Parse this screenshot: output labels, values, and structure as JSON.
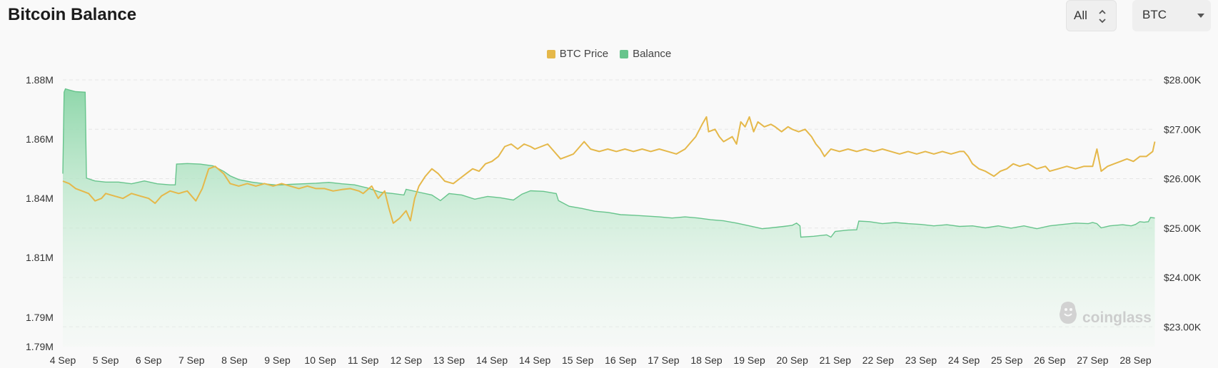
{
  "page": {
    "title": "Bitcoin Balance",
    "range_select": {
      "value": "All"
    },
    "coin_select": {
      "value": "BTC"
    },
    "watermark": "coinglass"
  },
  "colors": {
    "price": "#e5b84a",
    "balance_line": "#67c48c",
    "balance_fill_top": "#86d4a4",
    "grid": "#e6e6e6"
  },
  "icons": [
    "up-down-chevron-icon",
    "caret-down-icon",
    "coinglass-logo-icon"
  ],
  "chart_data": {
    "type": "line",
    "title": "Bitcoin Balance",
    "x": [
      "4 Sep",
      "5 Sep",
      "6 Sep",
      "7 Sep",
      "8 Sep",
      "9 Sep",
      "10 Sep",
      "11 Sep",
      "12 Sep",
      "13 Sep",
      "14 Sep",
      "14 Sep",
      "15 Sep",
      "16 Sep",
      "17 Sep",
      "18 Sep",
      "19 Sep",
      "20 Sep",
      "21 Sep",
      "22 Sep",
      "23 Sep",
      "24 Sep",
      "25 Sep",
      "26 Sep",
      "27 Sep",
      "28 Sep"
    ],
    "y_left": {
      "ticks": [
        "1.88M",
        "1.86M",
        "1.84M",
        "1.81M",
        "1.79M",
        "1.79M"
      ],
      "min": 1.786,
      "max": 1.881
    },
    "y_right": {
      "ticks": [
        "$28.00K",
        "$27.00K",
        "$26.00K",
        "$25.00K",
        "$24.00K",
        "$23.00K"
      ],
      "min": 22.6,
      "max": 28.0
    },
    "grid": true,
    "legend_position": "top-center",
    "series": [
      {
        "name": "BTC Price",
        "axis": "right",
        "color": "#e5b84a",
        "points": [
          [
            0,
            25.95
          ],
          [
            0.15,
            25.9
          ],
          [
            0.3,
            25.8
          ],
          [
            0.45,
            25.75
          ],
          [
            0.6,
            25.7
          ],
          [
            0.75,
            25.55
          ],
          [
            0.9,
            25.6
          ],
          [
            1.0,
            25.7
          ],
          [
            1.2,
            25.65
          ],
          [
            1.4,
            25.6
          ],
          [
            1.6,
            25.7
          ],
          [
            1.8,
            25.65
          ],
          [
            2.0,
            25.6
          ],
          [
            2.15,
            25.5
          ],
          [
            2.3,
            25.65
          ],
          [
            2.5,
            25.75
          ],
          [
            2.7,
            25.7
          ],
          [
            2.9,
            25.75
          ],
          [
            3.0,
            25.65
          ],
          [
            3.1,
            25.55
          ],
          [
            3.25,
            25.8
          ],
          [
            3.4,
            26.2
          ],
          [
            3.55,
            26.25
          ],
          [
            3.75,
            26.1
          ],
          [
            3.9,
            25.9
          ],
          [
            4.1,
            25.85
          ],
          [
            4.3,
            25.9
          ],
          [
            4.5,
            25.85
          ],
          [
            4.7,
            25.9
          ],
          [
            4.9,
            25.85
          ],
          [
            5.1,
            25.9
          ],
          [
            5.3,
            25.85
          ],
          [
            5.5,
            25.8
          ],
          [
            5.7,
            25.85
          ],
          [
            5.9,
            25.8
          ],
          [
            6.1,
            25.8
          ],
          [
            6.3,
            25.75
          ],
          [
            6.5,
            25.78
          ],
          [
            6.7,
            25.8
          ],
          [
            6.9,
            25.75
          ],
          [
            7.0,
            25.7
          ],
          [
            7.2,
            25.85
          ],
          [
            7.35,
            25.6
          ],
          [
            7.5,
            25.75
          ],
          [
            7.6,
            25.4
          ],
          [
            7.7,
            25.1
          ],
          [
            7.85,
            25.2
          ],
          [
            8.0,
            25.35
          ],
          [
            8.1,
            25.15
          ],
          [
            8.2,
            25.6
          ],
          [
            8.3,
            25.85
          ],
          [
            8.45,
            26.05
          ],
          [
            8.6,
            26.2
          ],
          [
            8.75,
            26.1
          ],
          [
            8.9,
            25.95
          ],
          [
            9.1,
            25.9
          ],
          [
            9.25,
            26.0
          ],
          [
            9.4,
            26.1
          ],
          [
            9.55,
            26.2
          ],
          [
            9.7,
            26.15
          ],
          [
            9.85,
            26.3
          ],
          [
            10.0,
            26.35
          ],
          [
            10.15,
            26.45
          ],
          [
            10.3,
            26.65
          ],
          [
            10.45,
            26.7
          ],
          [
            10.6,
            26.6
          ],
          [
            10.75,
            26.7
          ],
          [
            10.9,
            26.65
          ],
          [
            11.0,
            26.6
          ],
          [
            11.15,
            26.65
          ],
          [
            11.3,
            26.7
          ],
          [
            11.45,
            26.55
          ],
          [
            11.6,
            26.4
          ],
          [
            11.75,
            26.45
          ],
          [
            11.9,
            26.5
          ],
          [
            12.0,
            26.6
          ],
          [
            12.15,
            26.75
          ],
          [
            12.3,
            26.6
          ],
          [
            12.5,
            26.55
          ],
          [
            12.7,
            26.6
          ],
          [
            12.9,
            26.55
          ],
          [
            13.1,
            26.6
          ],
          [
            13.3,
            26.55
          ],
          [
            13.5,
            26.6
          ],
          [
            13.7,
            26.55
          ],
          [
            13.9,
            26.6
          ],
          [
            14.1,
            26.55
          ],
          [
            14.3,
            26.5
          ],
          [
            14.5,
            26.6
          ],
          [
            14.6,
            26.7
          ],
          [
            14.75,
            26.85
          ],
          [
            14.9,
            27.1
          ],
          [
            15.0,
            27.25
          ],
          [
            15.05,
            26.95
          ],
          [
            15.2,
            27.0
          ],
          [
            15.3,
            26.85
          ],
          [
            15.4,
            26.75
          ],
          [
            15.5,
            26.8
          ],
          [
            15.6,
            26.85
          ],
          [
            15.7,
            26.7
          ],
          [
            15.8,
            27.15
          ],
          [
            15.9,
            27.05
          ],
          [
            16.0,
            27.25
          ],
          [
            16.1,
            26.95
          ],
          [
            16.2,
            27.15
          ],
          [
            16.35,
            27.05
          ],
          [
            16.5,
            27.1
          ],
          [
            16.6,
            27.05
          ],
          [
            16.75,
            26.95
          ],
          [
            16.9,
            27.05
          ],
          [
            17.0,
            27.0
          ],
          [
            17.15,
            26.95
          ],
          [
            17.3,
            27.0
          ],
          [
            17.45,
            26.85
          ],
          [
            17.55,
            26.7
          ],
          [
            17.65,
            26.6
          ],
          [
            17.75,
            26.45
          ],
          [
            17.9,
            26.6
          ],
          [
            18.1,
            26.55
          ],
          [
            18.3,
            26.6
          ],
          [
            18.5,
            26.55
          ],
          [
            18.7,
            26.6
          ],
          [
            18.9,
            26.55
          ],
          [
            19.1,
            26.6
          ],
          [
            19.3,
            26.55
          ],
          [
            19.5,
            26.5
          ],
          [
            19.7,
            26.55
          ],
          [
            19.9,
            26.5
          ],
          [
            20.1,
            26.55
          ],
          [
            20.3,
            26.5
          ],
          [
            20.5,
            26.55
          ],
          [
            20.7,
            26.5
          ],
          [
            20.9,
            26.55
          ],
          [
            21.0,
            26.55
          ],
          [
            21.1,
            26.45
          ],
          [
            21.2,
            26.3
          ],
          [
            21.35,
            26.2
          ],
          [
            21.5,
            26.15
          ],
          [
            21.7,
            26.05
          ],
          [
            21.85,
            26.15
          ],
          [
            22.0,
            26.2
          ],
          [
            22.15,
            26.3
          ],
          [
            22.3,
            26.25
          ],
          [
            22.5,
            26.3
          ],
          [
            22.7,
            26.2
          ],
          [
            22.9,
            26.25
          ],
          [
            23.0,
            26.15
          ],
          [
            23.2,
            26.2
          ],
          [
            23.4,
            26.25
          ],
          [
            23.6,
            26.2
          ],
          [
            23.8,
            26.25
          ],
          [
            24.0,
            26.25
          ],
          [
            24.1,
            26.6
          ],
          [
            24.2,
            26.15
          ],
          [
            24.35,
            26.25
          ],
          [
            24.5,
            26.3
          ],
          [
            24.65,
            26.35
          ],
          [
            24.8,
            26.4
          ],
          [
            24.95,
            26.35
          ],
          [
            25.1,
            26.45
          ],
          [
            25.25,
            26.45
          ],
          [
            25.4,
            26.55
          ],
          [
            25.45,
            26.75
          ]
        ]
      },
      {
        "name": "Balance",
        "axis": "left",
        "color": "#67c48c",
        "points": [
          [
            0,
            1.8476
          ],
          [
            0.03,
            1.8766
          ],
          [
            0.06,
            1.8778
          ],
          [
            0.15,
            1.8774
          ],
          [
            0.3,
            1.8768
          ],
          [
            0.52,
            1.8766
          ],
          [
            0.55,
            1.846
          ],
          [
            0.75,
            1.845
          ],
          [
            1.0,
            1.8446
          ],
          [
            1.3,
            1.8446
          ],
          [
            1.6,
            1.844
          ],
          [
            1.9,
            1.845
          ],
          [
            2.2,
            1.844
          ],
          [
            2.5,
            1.8436
          ],
          [
            2.62,
            1.8436
          ],
          [
            2.65,
            1.851
          ],
          [
            2.9,
            1.8512
          ],
          [
            3.2,
            1.851
          ],
          [
            3.5,
            1.8504
          ],
          [
            3.75,
            1.8484
          ],
          [
            3.9,
            1.8468
          ],
          [
            4.1,
            1.8455
          ],
          [
            4.4,
            1.8446
          ],
          [
            4.7,
            1.844
          ],
          [
            5.0,
            1.8435
          ],
          [
            5.3,
            1.8438
          ],
          [
            5.6,
            1.844
          ],
          [
            5.9,
            1.8442
          ],
          [
            6.2,
            1.8445
          ],
          [
            6.5,
            1.844
          ],
          [
            6.8,
            1.8436
          ],
          [
            7.1,
            1.8425
          ],
          [
            7.4,
            1.841
          ],
          [
            7.7,
            1.8405
          ],
          [
            7.95,
            1.84
          ],
          [
            8.0,
            1.842
          ],
          [
            8.3,
            1.841
          ],
          [
            8.6,
            1.84
          ],
          [
            8.8,
            1.838
          ],
          [
            9.0,
            1.8405
          ],
          [
            9.3,
            1.84
          ],
          [
            9.6,
            1.8385
          ],
          [
            9.9,
            1.8395
          ],
          [
            10.2,
            1.839
          ],
          [
            10.5,
            1.8382
          ],
          [
            10.7,
            1.8403
          ],
          [
            10.9,
            1.8415
          ],
          [
            11.2,
            1.8413
          ],
          [
            11.5,
            1.8405
          ],
          [
            11.55,
            1.838
          ],
          [
            11.8,
            1.836
          ],
          [
            12.1,
            1.8352
          ],
          [
            12.4,
            1.8342
          ],
          [
            12.7,
            1.8338
          ],
          [
            13.0,
            1.833
          ],
          [
            13.3,
            1.8328
          ],
          [
            13.6,
            1.8325
          ],
          [
            13.9,
            1.8322
          ],
          [
            14.2,
            1.8318
          ],
          [
            14.5,
            1.8322
          ],
          [
            14.8,
            1.8318
          ],
          [
            15.1,
            1.8312
          ],
          [
            15.4,
            1.8308
          ],
          [
            15.7,
            1.83
          ],
          [
            16.0,
            1.829
          ],
          [
            16.3,
            1.828
          ],
          [
            16.5,
            1.8283
          ],
          [
            16.8,
            1.8288
          ],
          [
            17.0,
            1.8292
          ],
          [
            17.1,
            1.83
          ],
          [
            17.18,
            1.829
          ],
          [
            17.2,
            1.825
          ],
          [
            17.5,
            1.8253
          ],
          [
            17.8,
            1.8258
          ],
          [
            17.9,
            1.825
          ],
          [
            18.0,
            1.827
          ],
          [
            18.3,
            1.8275
          ],
          [
            18.5,
            1.8276
          ],
          [
            18.55,
            1.8307
          ],
          [
            18.8,
            1.8305
          ],
          [
            19.1,
            1.8298
          ],
          [
            19.4,
            1.8302
          ],
          [
            19.7,
            1.8298
          ],
          [
            20.0,
            1.8295
          ],
          [
            20.3,
            1.829
          ],
          [
            20.6,
            1.8294
          ],
          [
            20.9,
            1.8288
          ],
          [
            21.2,
            1.829
          ],
          [
            21.5,
            1.8283
          ],
          [
            21.8,
            1.829
          ],
          [
            22.1,
            1.8282
          ],
          [
            22.4,
            1.829
          ],
          [
            22.7,
            1.828
          ],
          [
            23.0,
            1.829
          ],
          [
            23.3,
            1.8295
          ],
          [
            23.6,
            1.83
          ],
          [
            23.9,
            1.8298
          ],
          [
            24.0,
            1.8302
          ],
          [
            24.1,
            1.8298
          ],
          [
            24.2,
            1.8283
          ],
          [
            24.4,
            1.829
          ],
          [
            24.7,
            1.8294
          ],
          [
            24.9,
            1.829
          ],
          [
            25.0,
            1.8295
          ],
          [
            25.1,
            1.8305
          ],
          [
            25.2,
            1.8303
          ],
          [
            25.3,
            1.8305
          ],
          [
            25.35,
            1.832
          ],
          [
            25.45,
            1.8318
          ]
        ]
      }
    ]
  }
}
